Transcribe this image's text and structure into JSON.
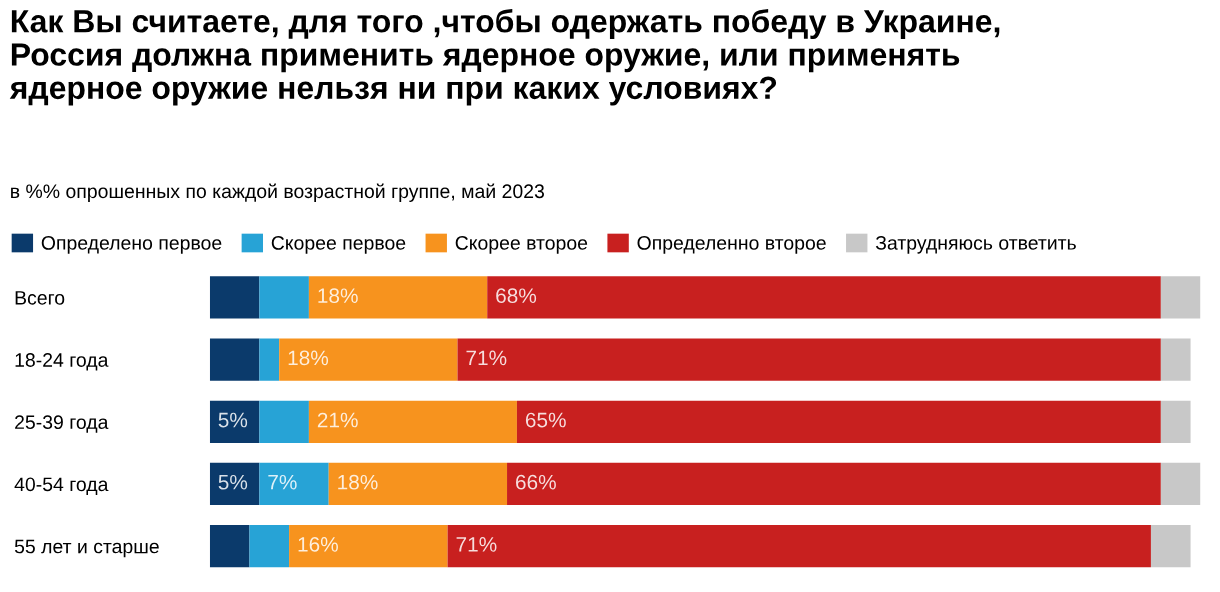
{
  "chart_data": {
    "type": "bar",
    "orientation": "horizontal",
    "stacked": true,
    "title": "Как Вы считаете, для того ,чтобы одержать победу в Украине,\nРоссия должна применить ядерное оружие, или применять\nядерное оружие нельзя ни при каких условиях?",
    "subtitle": "в %% опрошенных по каждой возрастной группе, май 2023",
    "categories": [
      "Всего",
      "18-24 года",
      "25-39 года",
      "40-54 года",
      "55 лет и старше"
    ],
    "xlim": [
      0,
      100
    ],
    "tick_labels": "y",
    "legend": "top",
    "grid": false,
    "series": [
      {
        "name": "Определено первое",
        "color": "#0b3a6b",
        "values": [
          5,
          5,
          5,
          5,
          4
        ],
        "value_labels": [
          null,
          null,
          "5%",
          "5%",
          null
        ]
      },
      {
        "name": "Скорее первое",
        "color": "#27a3d6",
        "values": [
          5,
          2,
          5,
          7,
          4
        ],
        "value_labels": [
          null,
          null,
          null,
          "7%",
          null
        ]
      },
      {
        "name": "Скорее второе",
        "color": "#f7931e",
        "values": [
          18,
          18,
          21,
          18,
          16
        ],
        "value_labels": [
          "18%",
          "18%",
          "21%",
          "18%",
          "16%"
        ]
      },
      {
        "name": "Определенно второе",
        "color": "#c8201f",
        "values": [
          68,
          71,
          65,
          66,
          71
        ],
        "value_labels": [
          "68%",
          "71%",
          "65%",
          "66%",
          "71%"
        ]
      },
      {
        "name": "Затрудняюсь ответить",
        "color": "#c8c8c8",
        "values": [
          4,
          3,
          3,
          4,
          4
        ],
        "value_labels": [
          null,
          null,
          null,
          null,
          null
        ]
      }
    ]
  }
}
